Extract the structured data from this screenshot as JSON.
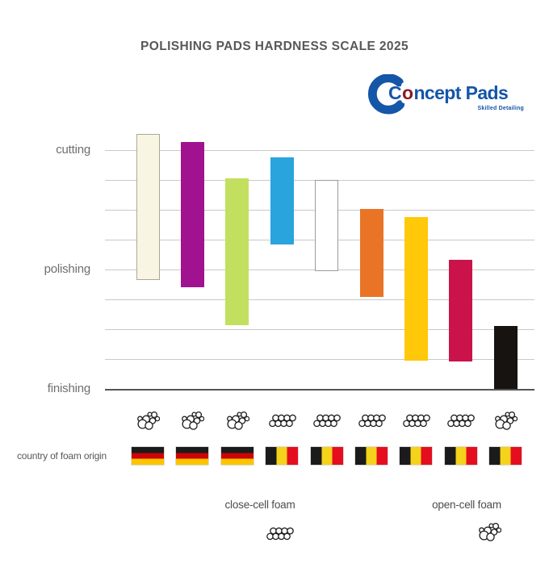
{
  "title_note": "static infographic, no interactive controls",
  "logo": {
    "brand": "Concept Pads",
    "tagline": "Skilled Detailing",
    "brand_color": "#1456a8",
    "accent_color": "#8d1b20"
  },
  "axis": {
    "labels": [
      "cutting",
      "polishing",
      "finishing"
    ]
  },
  "bottom": {
    "country_label": "country of foam origin"
  },
  "legend": [
    {
      "label": "close-cell foam",
      "icon": "close-cell-foam-icon"
    },
    {
      "label": "open-cell foam",
      "icon": "open-cell-foam-icon"
    }
  ],
  "chart_data": {
    "type": "bar",
    "subtype": "floating-range-columns",
    "title": "POLISHING PADS HARDNESS SCALE 2025",
    "orientation": "vertical ranges on a top-to-bottom hardness scale",
    "grid": true,
    "y_axis": {
      "gridline_levels": [
        1,
        2,
        3,
        4,
        5,
        6,
        7,
        8,
        9
      ],
      "labeled_levels": {
        "cutting": 1,
        "polishing": 5,
        "finishing": 9
      },
      "direction": "1 = hardest (cutting) at top, 9 = softest (finishing) at bottom"
    },
    "bars": [
      {
        "color": "#f8f6e3",
        "border": "#a9a79a",
        "range": [
          0.45,
          5.35
        ],
        "foam": "open-cell",
        "country": "Germany"
      },
      {
        "color": "#a0128f",
        "border": null,
        "range": [
          0.73,
          5.6
        ],
        "foam": "open-cell",
        "country": "Germany"
      },
      {
        "color": "#c3df5f",
        "border": null,
        "range": [
          1.95,
          6.86
        ],
        "foam": "open-cell",
        "country": "Germany"
      },
      {
        "color": "#29a4dd",
        "border": null,
        "range": [
          1.25,
          4.16
        ],
        "foam": "close-cell",
        "country": "Belgium"
      },
      {
        "color": "#ffffff",
        "border": "#9b9b9b",
        "range": [
          2.0,
          5.05
        ],
        "foam": "close-cell",
        "country": "Belgium"
      },
      {
        "color": "#e97426",
        "border": null,
        "range": [
          2.97,
          5.92
        ],
        "foam": "close-cell",
        "country": "Belgium"
      },
      {
        "color": "#ffc808",
        "border": null,
        "range": [
          3.25,
          8.05
        ],
        "foam": "close-cell",
        "country": "Belgium"
      },
      {
        "color": "#c9134a",
        "border": null,
        "range": [
          4.68,
          8.08
        ],
        "foam": "close-cell",
        "country": "Belgium"
      },
      {
        "color": "#161310",
        "border": null,
        "range": [
          6.9,
          9.0
        ],
        "foam": "open-cell",
        "country": "Belgium"
      }
    ],
    "flags": {
      "Germany": {
        "type": "horizontal",
        "colors": [
          "#1b1b1b",
          "#cc0502",
          "#fec400"
        ]
      },
      "Belgium": {
        "type": "vertical",
        "colors": [
          "#1b1b1b",
          "#f5d21b",
          "#e50e1f"
        ]
      }
    }
  }
}
